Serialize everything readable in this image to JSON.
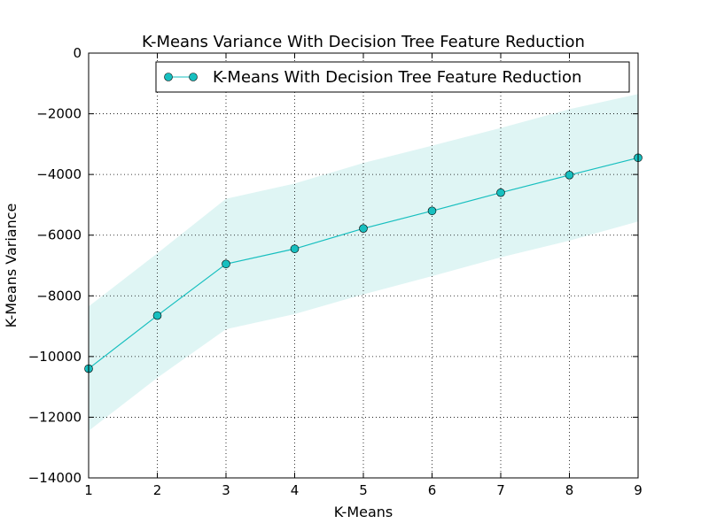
{
  "chart_data": {
    "type": "line",
    "title": "K-Means Variance With Decision Tree Feature Reduction",
    "xlabel": "K-Means",
    "ylabel": "K-Means Variance",
    "xlim": [
      1,
      9
    ],
    "ylim": [
      -14000,
      0
    ],
    "xticks": [
      1,
      2,
      3,
      4,
      5,
      6,
      7,
      8,
      9
    ],
    "yticks": [
      0,
      -2000,
      -4000,
      -6000,
      -8000,
      -10000,
      -12000,
      -14000
    ],
    "grid": true,
    "legend_position": "top-right",
    "series": [
      {
        "name": "K-Means With Decision Tree Feature Reduction",
        "color": "#17bfbf",
        "band_color": "#dff5f4",
        "marker": "circle",
        "x": [
          1,
          2,
          3,
          4,
          5,
          6,
          7,
          8,
          9
        ],
        "y": [
          -10400,
          -8650,
          -6950,
          -6450,
          -5780,
          -5200,
          -4600,
          -4020,
          -3450
        ],
        "band_upper": [
          -8350,
          -6600,
          -4800,
          -4300,
          -3620,
          -3050,
          -2470,
          -1850,
          -1350
        ],
        "band_lower": [
          -12450,
          -10700,
          -9100,
          -8600,
          -7950,
          -7350,
          -6730,
          -6180,
          -5550
        ]
      }
    ]
  }
}
